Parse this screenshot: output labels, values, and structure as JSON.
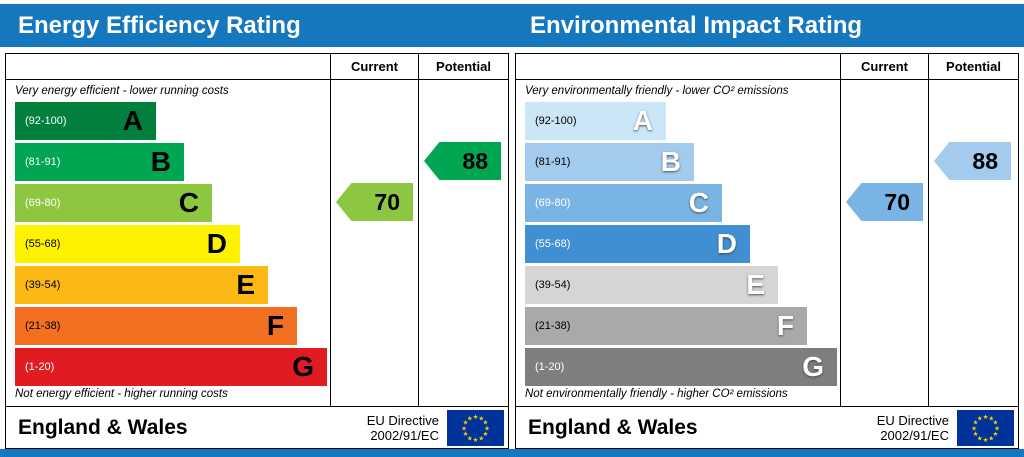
{
  "colors": {
    "header_bg": "#1577bd",
    "flag_bg": "#003399",
    "flag_star": "#ffcc00"
  },
  "page": {
    "left_title": "Energy Efficiency Rating",
    "right_title": "Environmental Impact Rating"
  },
  "columns": {
    "current": "Current",
    "potential": "Potential"
  },
  "panels": [
    {
      "title": "Energy Efficiency Rating",
      "top_caption": "Very energy efficient - lower running costs",
      "bottom_caption": "Not energy efficient - higher running costs",
      "bands": [
        {
          "letter": "A",
          "range": "(92-100)",
          "color": "#007f3d"
        },
        {
          "letter": "B",
          "range": "(81-91)",
          "color": "#00a651"
        },
        {
          "letter": "C",
          "range": "(69-80)",
          "color": "#8dc63f"
        },
        {
          "letter": "D",
          "range": "(55-68)",
          "color": "#fff200"
        },
        {
          "letter": "E",
          "range": "(39-54)",
          "color": "#fcb913"
        },
        {
          "letter": "F",
          "range": "(21-38)",
          "color": "#f36f21"
        },
        {
          "letter": "G",
          "range": "(1-20)",
          "color": "#e01b22"
        }
      ],
      "current": {
        "value": "70",
        "band": "C",
        "color": "#8dc63f"
      },
      "potential": {
        "value": "88",
        "band": "B",
        "color": "#00a651"
      },
      "footer": {
        "region": "England & Wales",
        "directive_line1": "EU Directive",
        "directive_line2": "2002/91/EC"
      }
    },
    {
      "title": "Environmental Impact Rating",
      "top_caption": "Very environmentally friendly - lower CO² emissions",
      "bottom_caption": "Not environmentally friendly - higher CO² emissions",
      "bands": [
        {
          "letter": "A",
          "range": "(92-100)",
          "color": "#cbe6f7"
        },
        {
          "letter": "B",
          "range": "(81-91)",
          "color": "#a3cbee"
        },
        {
          "letter": "C",
          "range": "(69-80)",
          "color": "#79b4e4"
        },
        {
          "letter": "D",
          "range": "(55-68)",
          "color": "#3f8fd2"
        },
        {
          "letter": "E",
          "range": "(39-54)",
          "color": "#d5d5d5"
        },
        {
          "letter": "F",
          "range": "(21-38)",
          "color": "#a9a9a9"
        },
        {
          "letter": "G",
          "range": "(1-20)",
          "color": "#7e7e7e"
        }
      ],
      "current": {
        "value": "70",
        "band": "C",
        "color": "#79b4e4"
      },
      "potential": {
        "value": "88",
        "band": "B",
        "color": "#a3cbee"
      },
      "footer": {
        "region": "England & Wales",
        "directive_line1": "EU Directive",
        "directive_line2": "2002/91/EC"
      }
    }
  ],
  "chart_data": [
    {
      "type": "bar",
      "title": "Energy Efficiency Rating",
      "categories": [
        "A",
        "B",
        "C",
        "D",
        "E",
        "F",
        "G"
      ],
      "band_ranges": [
        "92-100",
        "81-91",
        "69-80",
        "55-68",
        "39-54",
        "21-38",
        "1-20"
      ],
      "current": 70,
      "current_band": "C",
      "potential": 88,
      "potential_band": "B",
      "scale_max": 100,
      "legend_position": "none",
      "grid": false
    },
    {
      "type": "bar",
      "title": "Environmental Impact Rating",
      "categories": [
        "A",
        "B",
        "C",
        "D",
        "E",
        "F",
        "G"
      ],
      "band_ranges": [
        "92-100",
        "81-91",
        "69-80",
        "55-68",
        "39-54",
        "21-38",
        "1-20"
      ],
      "current": 70,
      "current_band": "C",
      "potential": 88,
      "potential_band": "B",
      "scale_max": 100,
      "legend_position": "none",
      "grid": false
    }
  ]
}
